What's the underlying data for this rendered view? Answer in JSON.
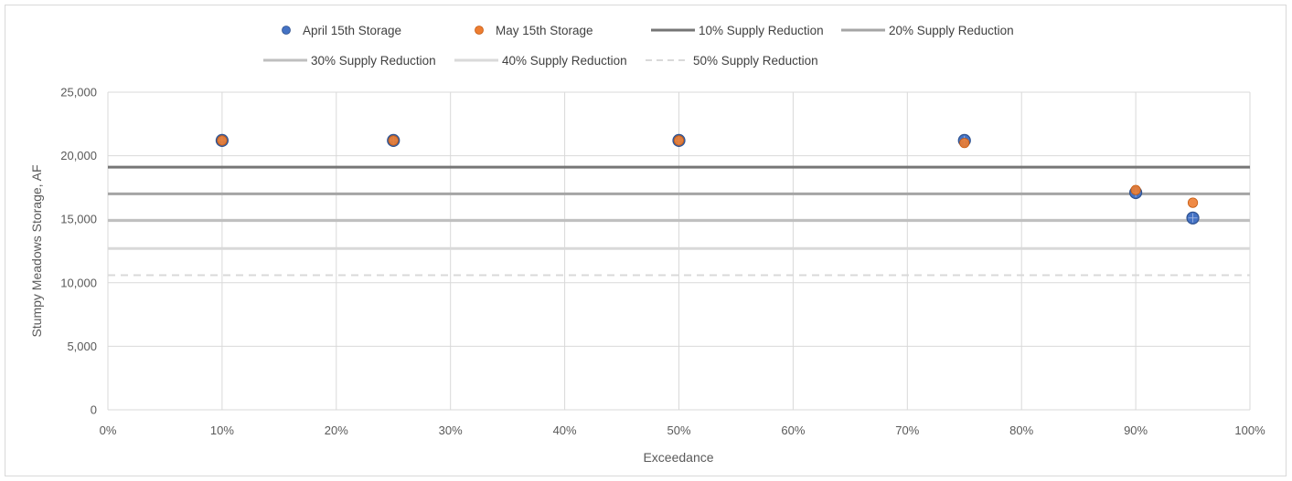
{
  "chart_data": {
    "type": "scatter",
    "title": "",
    "xlabel": "Exceedance",
    "ylabel": "Stumpy Meadows Storage, AF",
    "xlim": [
      0,
      100
    ],
    "ylim": [
      0,
      25000
    ],
    "x_ticks": [
      "0%",
      "10%",
      "20%",
      "30%",
      "40%",
      "50%",
      "60%",
      "70%",
      "80%",
      "90%",
      "100%"
    ],
    "y_ticks": [
      "0",
      "5,000",
      "10,000",
      "15,000",
      "20,000",
      "25,000"
    ],
    "grid": true,
    "legend_position": "top",
    "series": [
      {
        "name": "April 15th Storage",
        "kind": "scatter",
        "color": "#4472c4",
        "x": [
          10,
          25,
          50,
          75,
          90,
          95
        ],
        "y": [
          21200,
          21200,
          21200,
          21200,
          17100,
          15100
        ]
      },
      {
        "name": "May 15th Storage",
        "kind": "scatter",
        "color": "#ed7d31",
        "x": [
          10,
          25,
          50,
          75,
          90,
          95
        ],
        "y": [
          21200,
          21200,
          21200,
          21000,
          17300,
          16300
        ]
      }
    ],
    "reference_lines": [
      {
        "name": "10% Supply Reduction",
        "y": 19100,
        "color": "#767676",
        "style": "solid"
      },
      {
        "name": "20% Supply Reduction",
        "y": 17000,
        "color": "#a5a5a5",
        "style": "solid"
      },
      {
        "name": "30% Supply Reduction",
        "y": 14900,
        "color": "#bfbfbf",
        "style": "solid"
      },
      {
        "name": "40% Supply Reduction",
        "y": 12700,
        "color": "#d9d9d9",
        "style": "solid"
      },
      {
        "name": "50% Supply Reduction",
        "y": 10600,
        "color": "#d9d9d9",
        "style": "dashed"
      }
    ]
  }
}
